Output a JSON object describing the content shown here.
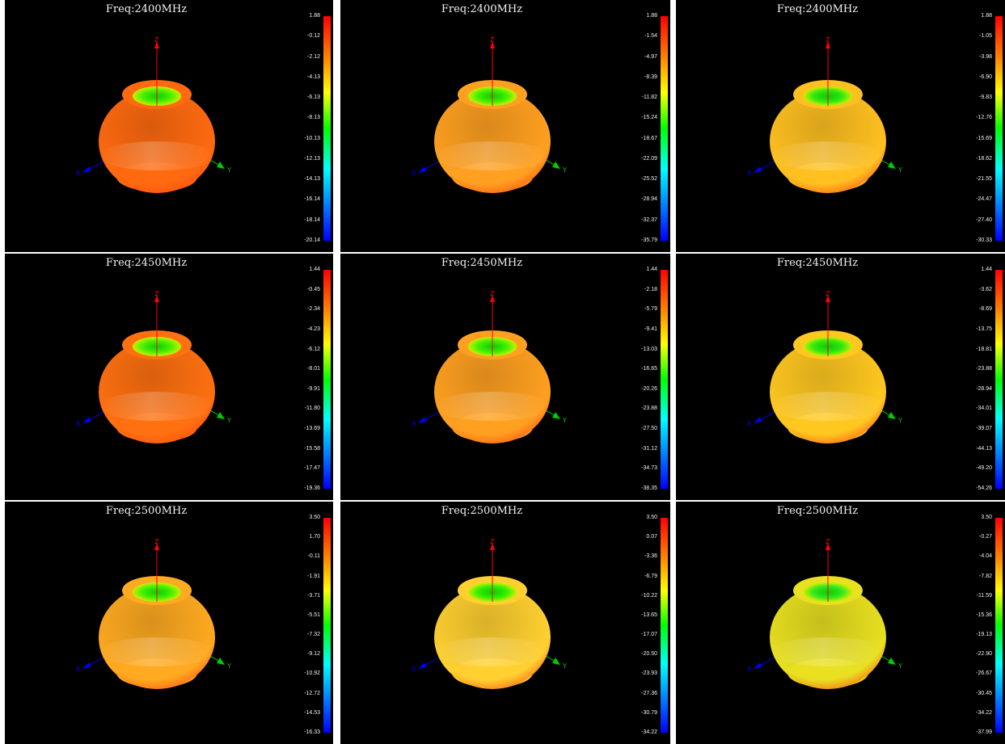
{
  "colors": {
    "background": "#000000",
    "separator": "#ffffff",
    "axis_x": "#0000ff",
    "axis_y": "#00cc00",
    "axis_z": "#ff0000",
    "text": "#f2f2f2"
  },
  "chart_data": [
    {
      "type": "heatmap",
      "title": "Freq:2400MHz",
      "axes": [
        "X",
        "Y",
        "Z"
      ],
      "colorbar_ticks": [
        "1.88",
        "-0.12",
        "-2.12",
        "-4.13",
        "-6.13",
        "-8.13",
        "-10.13",
        "-12.13",
        "-14.13",
        "-16.14",
        "-18.14",
        "-20.14"
      ],
      "range": [
        -20.14,
        1.88
      ],
      "pattern_color": "#ff6a10",
      "top_color": "#4cf000"
    },
    {
      "type": "heatmap",
      "title": "Freq:2400MHz",
      "axes": [
        "X",
        "Y",
        "Z"
      ],
      "colorbar_ticks": [
        "1.88",
        "-1.54",
        "-4.97",
        "-8.39",
        "-11.82",
        "-15.24",
        "-18.67",
        "-22.09",
        "-25.52",
        "-28.94",
        "-32.37",
        "-35.79"
      ],
      "range": [
        -35.79,
        1.88
      ],
      "pattern_color": "#ffa020",
      "top_color": "#40f000"
    },
    {
      "type": "heatmap",
      "title": "Freq:2400MHz",
      "axes": [
        "X",
        "Y",
        "Z"
      ],
      "colorbar_ticks": [
        "1.88",
        "-1.05",
        "-3.98",
        "-6.90",
        "-9.83",
        "-12.76",
        "-15.69",
        "-18.62",
        "-21.55",
        "-24.47",
        "-27.40",
        "-30.33"
      ],
      "range": [
        -30.33,
        1.88
      ],
      "pattern_color": "#ffc020",
      "top_color": "#30e810"
    },
    {
      "type": "heatmap",
      "title": "Freq:2450MHz",
      "axes": [
        "X",
        "Y",
        "Z"
      ],
      "colorbar_ticks": [
        "1.44",
        "-0.45",
        "-2.34",
        "-4.23",
        "-6.12",
        "-8.01",
        "-9.91",
        "-11.80",
        "-13.69",
        "-15.58",
        "-17.47",
        "-19.36"
      ],
      "range": [
        -19.36,
        1.44
      ],
      "pattern_color": "#ff7010",
      "top_color": "#4cf000"
    },
    {
      "type": "heatmap",
      "title": "Freq:2450MHz",
      "axes": [
        "X",
        "Y",
        "Z"
      ],
      "colorbar_ticks": [
        "1.44",
        "-2.18",
        "-5.79",
        "-9.41",
        "-13.03",
        "-16.65",
        "-20.26",
        "-23.88",
        "-27.50",
        "-31.12",
        "-34.73",
        "-38.35"
      ],
      "range": [
        -38.35,
        1.44
      ],
      "pattern_color": "#ffa020",
      "top_color": "#40f000"
    },
    {
      "type": "heatmap",
      "title": "Freq:2450MHz",
      "axes": [
        "X",
        "Y",
        "Z"
      ],
      "colorbar_ticks": [
        "1.44",
        "-3.62",
        "-8.69",
        "-13.75",
        "-18.81",
        "-23.88",
        "-28.94",
        "-34.01",
        "-39.07",
        "-44.13",
        "-49.20",
        "-54.26"
      ],
      "range": [
        -54.26,
        1.44
      ],
      "pattern_color": "#ffc820",
      "top_color": "#30e810"
    },
    {
      "type": "heatmap",
      "title": "Freq:2500MHz",
      "axes": [
        "X",
        "Y",
        "Z"
      ],
      "colorbar_ticks": [
        "3.50",
        "1.70",
        "-0.11",
        "-1.91",
        "-3.71",
        "-5.51",
        "-7.32",
        "-9.12",
        "-10.92",
        "-12.72",
        "-14.53",
        "-16.33"
      ],
      "range": [
        -16.33,
        3.5
      ],
      "pattern_color": "#ffaa20",
      "top_color": "#40f000"
    },
    {
      "type": "heatmap",
      "title": "Freq:2500MHz",
      "axes": [
        "X",
        "Y",
        "Z"
      ],
      "colorbar_ticks": [
        "3.50",
        "0.07",
        "-3.36",
        "-6.79",
        "-10.22",
        "-13.65",
        "-17.07",
        "-20.50",
        "-23.93",
        "-27.36",
        "-30.79",
        "-34.22"
      ],
      "range": [
        -34.22,
        3.5
      ],
      "pattern_color": "#ffd030",
      "top_color": "#30f000"
    },
    {
      "type": "heatmap",
      "title": "Freq:2500MHz",
      "axes": [
        "X",
        "Y",
        "Z"
      ],
      "colorbar_ticks": [
        "3.50",
        "-0.27",
        "-4.04",
        "-7.82",
        "-11.59",
        "-15.36",
        "-19.13",
        "-22.90",
        "-26.67",
        "-30.45",
        "-34.22",
        "-37.99"
      ],
      "range": [
        -37.99,
        3.5
      ],
      "pattern_color": "#e8e020",
      "top_color": "#30e820"
    }
  ]
}
